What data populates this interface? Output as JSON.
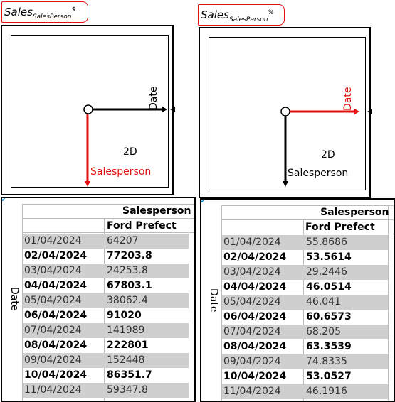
{
  "left": {
    "tag": {
      "main": "Sales",
      "sub": "SalesPerson",
      "sup": "$"
    },
    "axes": {
      "x_label": "Date",
      "y_label": "Salesperson",
      "mode": "2D",
      "x_color": "#000000",
      "y_color": "#e01010"
    },
    "table": {
      "column_group": "Salesperson",
      "column": "Ford Prefect",
      "row_axis": "Date",
      "rows": [
        {
          "date": "01/04/2024",
          "value": "64207"
        },
        {
          "date": "02/04/2024",
          "value": "77203.8"
        },
        {
          "date": "03/04/2024",
          "value": "24253.8"
        },
        {
          "date": "04/04/2024",
          "value": "67803.1"
        },
        {
          "date": "05/04/2024",
          "value": "38062.4"
        },
        {
          "date": "06/04/2024",
          "value": "91020"
        },
        {
          "date": "07/04/2024",
          "value": "141989"
        },
        {
          "date": "08/04/2024",
          "value": "222801"
        },
        {
          "date": "09/04/2024",
          "value": "152448"
        },
        {
          "date": "10/04/2024",
          "value": "86351.7"
        },
        {
          "date": "11/04/2024",
          "value": "59347.8"
        }
      ]
    }
  },
  "right": {
    "tag": {
      "main": "Sales",
      "sub": "SalesPerson",
      "sup": "%"
    },
    "axes": {
      "x_label": "Date",
      "y_label": "Salesperson",
      "mode": "2D",
      "x_color": "#e01010",
      "y_color": "#000000"
    },
    "table": {
      "column_group": "Salesperson",
      "column": "Ford Prefect",
      "row_axis": "Date",
      "rows": [
        {
          "date": "01/04/2024",
          "value": "55.8686"
        },
        {
          "date": "02/04/2024",
          "value": "53.5614"
        },
        {
          "date": "03/04/2024",
          "value": "29.2446"
        },
        {
          "date": "04/04/2024",
          "value": "46.0514"
        },
        {
          "date": "05/04/2024",
          "value": "46.041"
        },
        {
          "date": "06/04/2024",
          "value": "60.6573"
        },
        {
          "date": "07/04/2024",
          "value": "68.205"
        },
        {
          "date": "08/04/2024",
          "value": "63.3539"
        },
        {
          "date": "09/04/2024",
          "value": "74.8335"
        },
        {
          "date": "10/04/2024",
          "value": "53.0527"
        },
        {
          "date": "11/04/2024",
          "value": "46.1916"
        }
      ]
    }
  }
}
